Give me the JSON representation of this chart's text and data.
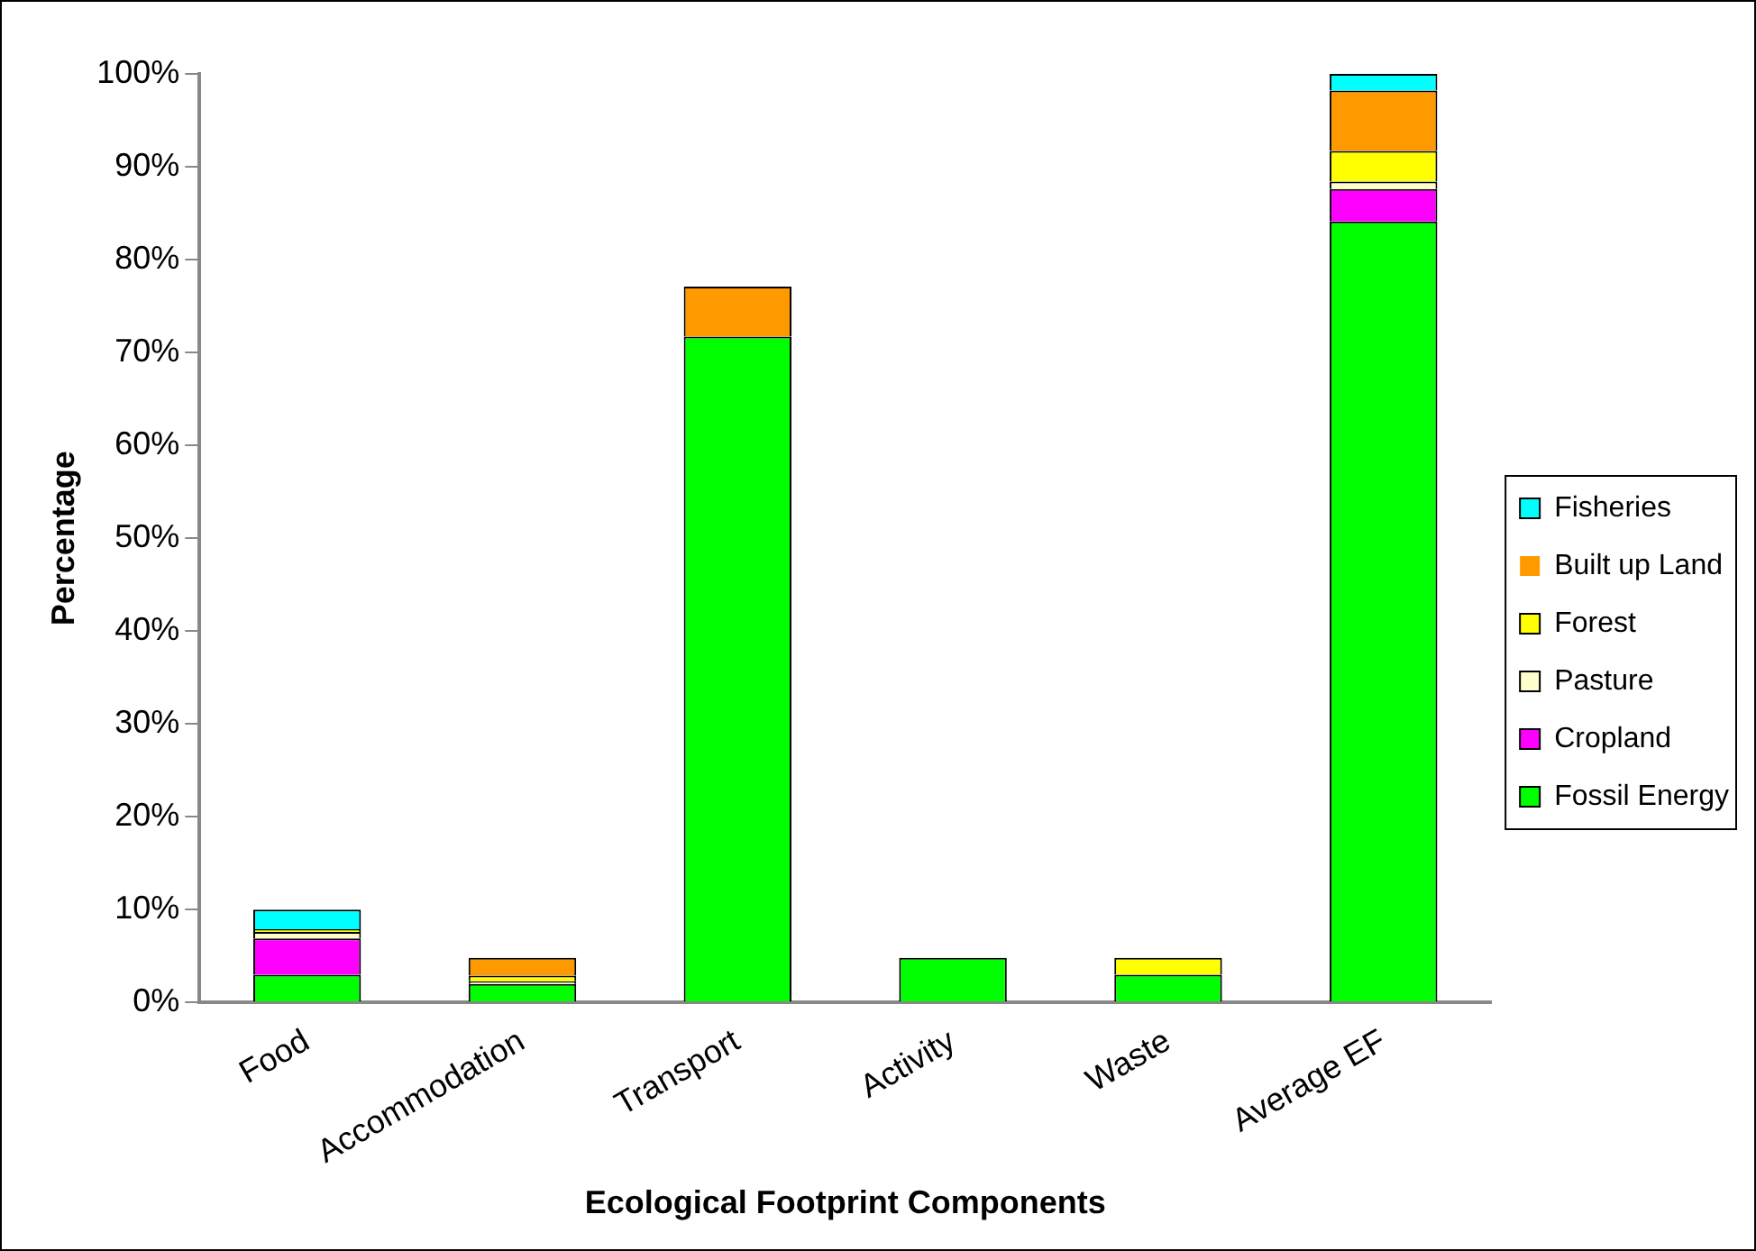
{
  "chart_data": {
    "type": "bar",
    "stacked": true,
    "xlabel": "Ecological Footprint Components",
    "ylabel": "Percentage",
    "categories": [
      "Food",
      "Accommodation",
      "Transport",
      "Activity",
      "Waste",
      "Average EF"
    ],
    "series": [
      {
        "name": "Fossil Energy",
        "color": "#00ff00",
        "values": [
          3,
          2,
          71.7,
          4.8,
          3,
          84.1
        ]
      },
      {
        "name": "Cropland",
        "color": "#ff00ff",
        "values": [
          3.9,
          0,
          0,
          0,
          0,
          3.5
        ]
      },
      {
        "name": "Pasture",
        "color": "#ffffcc",
        "values": [
          0.7,
          0.3,
          0,
          0,
          0,
          0.8
        ]
      },
      {
        "name": "Forest",
        "color": "#ffff00",
        "values": [
          0.3,
          0.6,
          0,
          0,
          1.8,
          3.3
        ]
      },
      {
        "name": "Built up Land",
        "color": "#ff9900",
        "values": [
          0,
          1.9,
          5.4,
          0,
          0,
          6.5
        ]
      },
      {
        "name": "Fisheries",
        "color": "#00ffff",
        "values": [
          2.1,
          0,
          0,
          0,
          0,
          1.8
        ]
      }
    ],
    "ylim": [
      0,
      100
    ],
    "yticks": [
      {
        "value": 0,
        "label": "0%"
      },
      {
        "value": 10,
        "label": "10%"
      },
      {
        "value": 20,
        "label": "20%"
      },
      {
        "value": 30,
        "label": "30%"
      },
      {
        "value": 40,
        "label": "40%"
      },
      {
        "value": 50,
        "label": "50%"
      },
      {
        "value": 60,
        "label": "60%"
      },
      {
        "value": 70,
        "label": "70%"
      },
      {
        "value": 80,
        "label": "80%"
      },
      {
        "value": 90,
        "label": "90%"
      },
      {
        "value": 100,
        "label": "100%"
      }
    ],
    "grid": false,
    "legend": "right"
  }
}
